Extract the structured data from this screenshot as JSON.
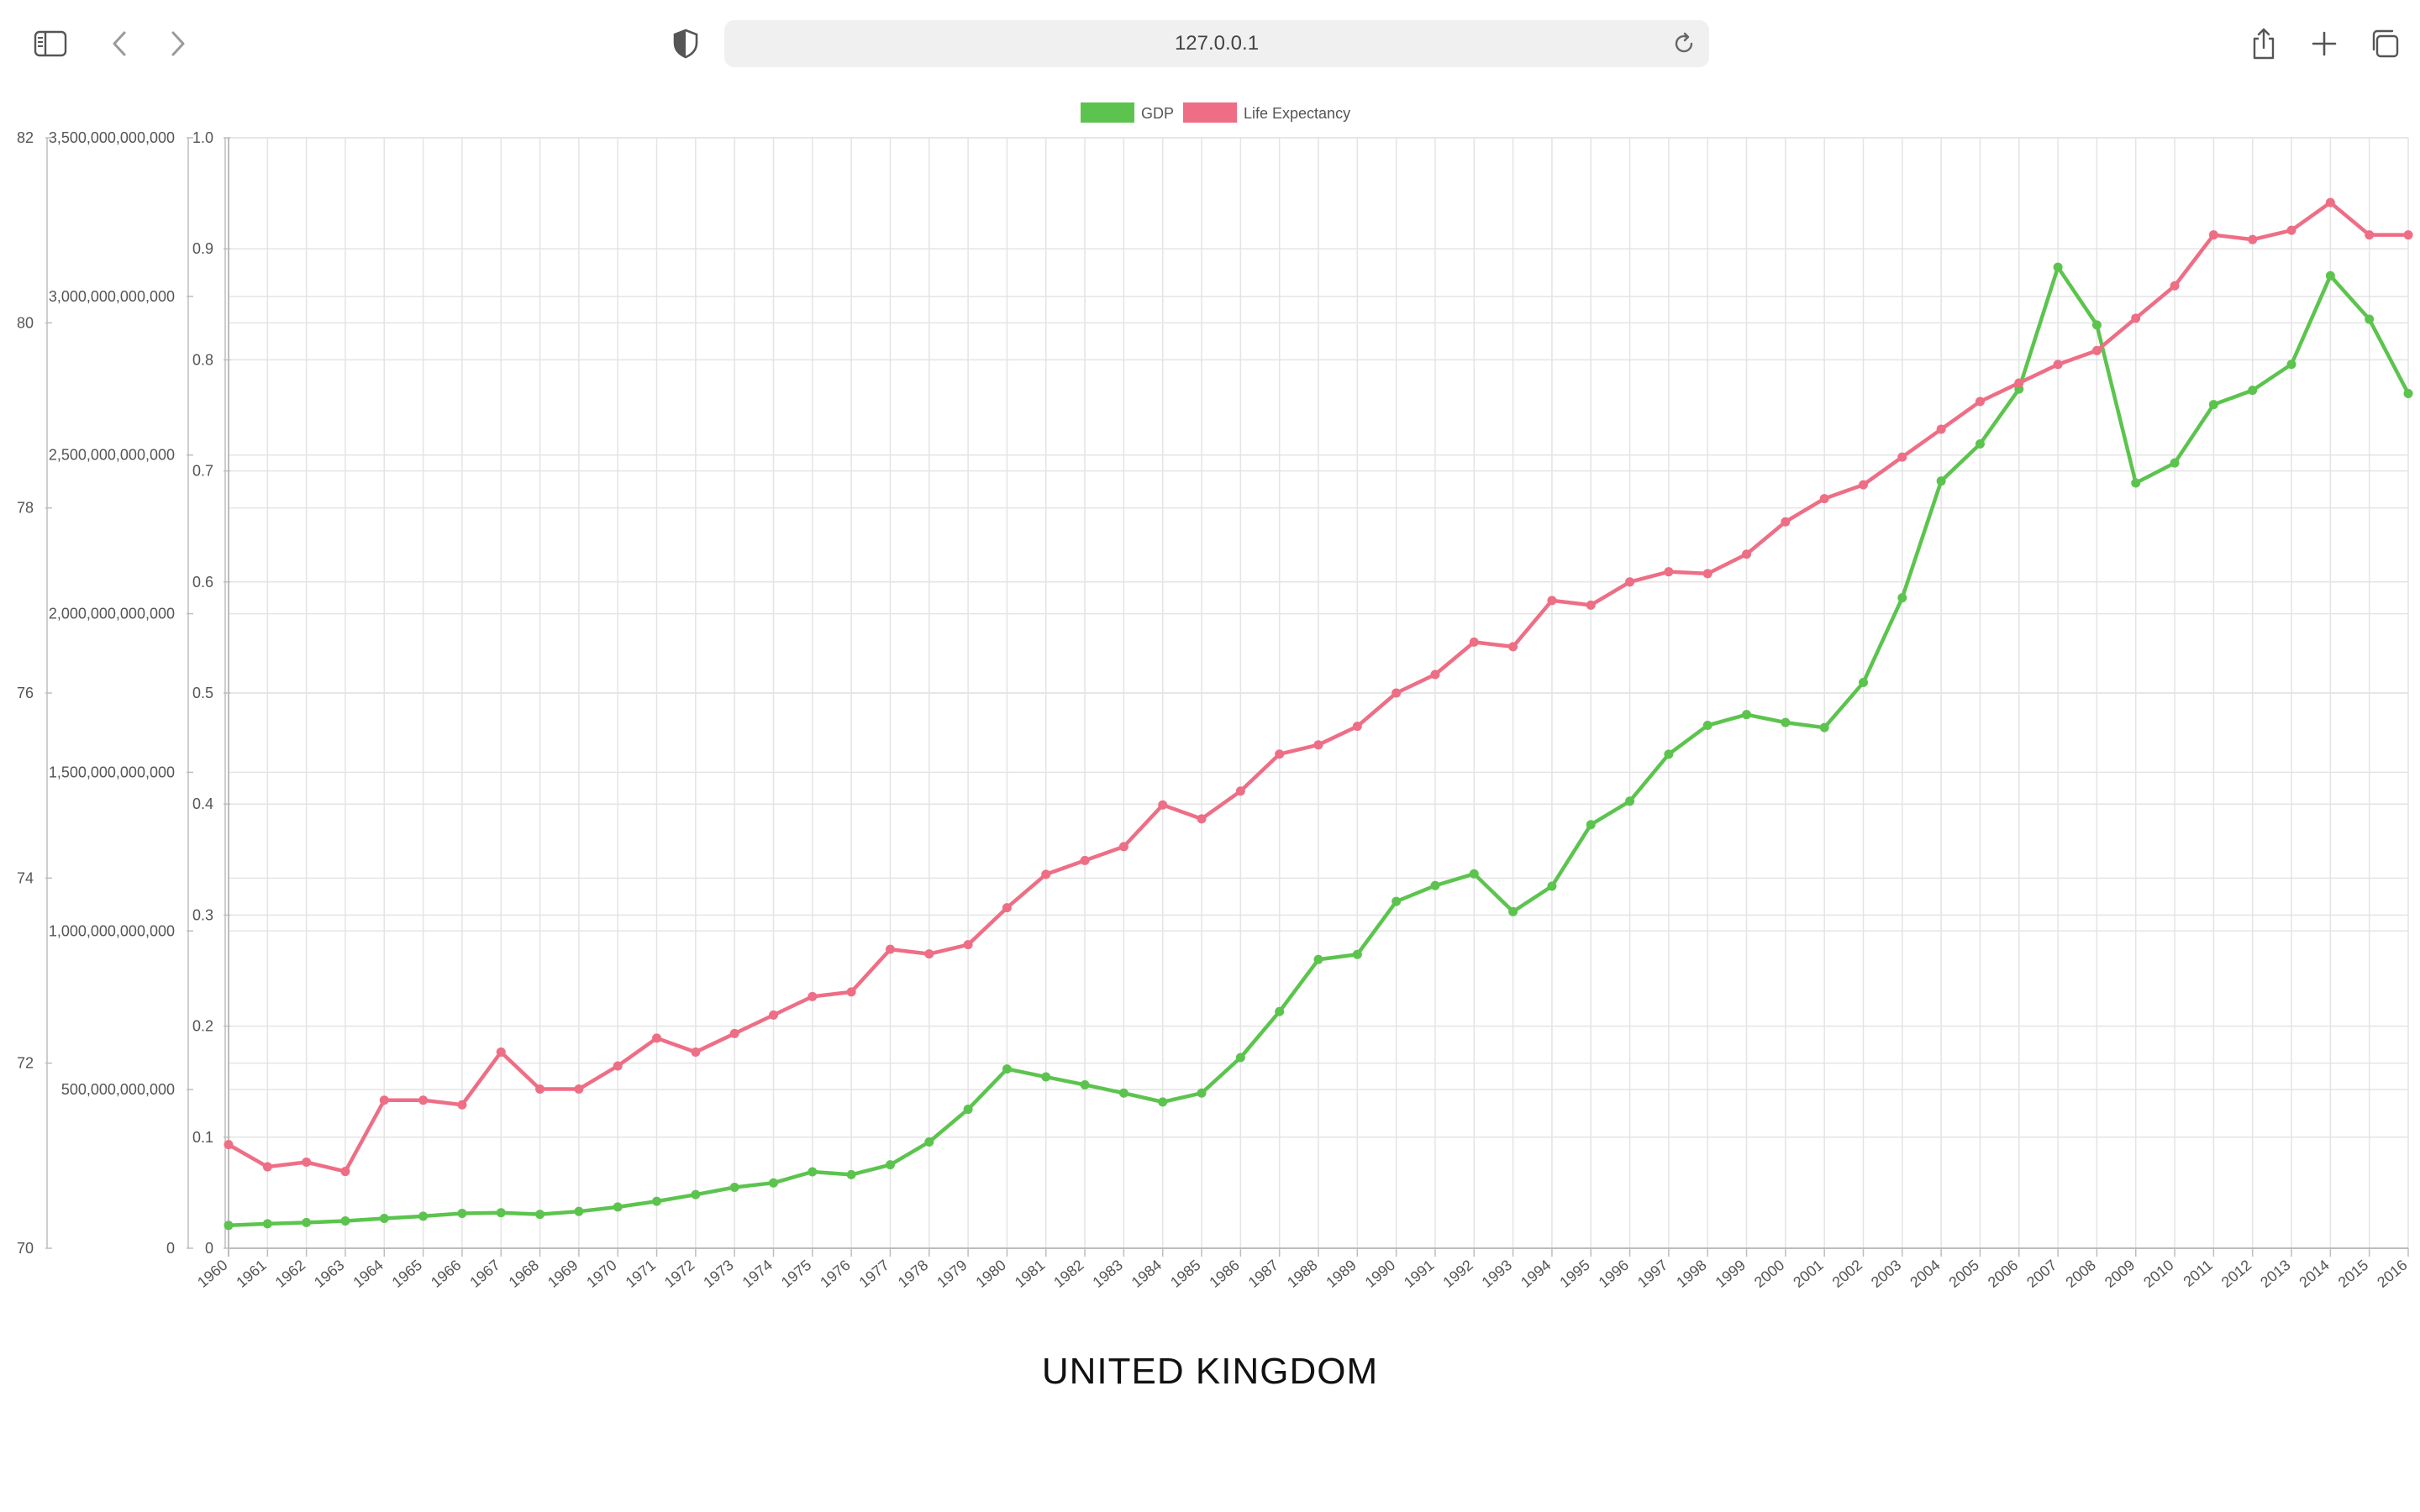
{
  "browser": {
    "url": "127.0.0.1"
  },
  "colors": {
    "gdp": "#5cc44e",
    "life": "#ee6e85",
    "grid": "#e4e4e4",
    "axis": "#bdbdbd",
    "text": "#555555"
  },
  "chart_data": {
    "type": "line",
    "title": "UNITED KINGDOM",
    "legend_position": "top",
    "grid": true,
    "categories": [
      "1960",
      "1961",
      "1962",
      "1963",
      "1964",
      "1965",
      "1966",
      "1967",
      "1968",
      "1969",
      "1970",
      "1971",
      "1972",
      "1973",
      "1974",
      "1975",
      "1976",
      "1977",
      "1978",
      "1979",
      "1980",
      "1981",
      "1982",
      "1983",
      "1984",
      "1985",
      "1986",
      "1987",
      "1988",
      "1989",
      "1990",
      "1991",
      "1992",
      "1993",
      "1994",
      "1995",
      "1996",
      "1997",
      "1998",
      "1999",
      "2000",
      "2001",
      "2002",
      "2003",
      "2004",
      "2005",
      "2006",
      "2007",
      "2008",
      "2009",
      "2010",
      "2011",
      "2012",
      "2013",
      "2014",
      "2015",
      "2016"
    ],
    "series": [
      {
        "name": "GDP",
        "axis": "gdp",
        "values": [
          72000000000,
          77000000000,
          81000000000,
          86000000000,
          94000000000,
          101000000000,
          110000000000,
          112000000000,
          107000000000,
          116000000000,
          130000000000,
          148000000000,
          169000000000,
          192000000000,
          206000000000,
          241000000000,
          232000000000,
          263000000000,
          335000000000,
          438000000000,
          565000000000,
          540000000000,
          515000000000,
          489000000000,
          461000000000,
          489000000000,
          601000000000,
          746000000000,
          910000000000,
          926000000000,
          1093000000000,
          1143000000000,
          1180000000000,
          1061000000000,
          1141000000000,
          1335000000000,
          1409000000000,
          1557000000000,
          1648000000000,
          1682000000000,
          1657000000000,
          1641000000000,
          1783000000000,
          2050000000000,
          2418000000000,
          2535000000000,
          2708000000000,
          3092000000000,
          2910000000000,
          2412000000000,
          2475000000000,
          2659000000000,
          2704000000000,
          2786000000000,
          3065000000000,
          2928000000000,
          2694000000000
        ]
      },
      {
        "name": "Life Expectancy",
        "axis": "life",
        "values": [
          71.12,
          70.88,
          70.93,
          70.83,
          71.6,
          71.6,
          71.55,
          72.12,
          71.72,
          71.72,
          71.97,
          72.27,
          72.12,
          72.32,
          72.52,
          72.72,
          72.77,
          73.23,
          73.18,
          73.28,
          73.68,
          74.04,
          74.19,
          74.34,
          74.79,
          74.64,
          74.94,
          75.34,
          75.44,
          75.64,
          76.0,
          76.2,
          76.55,
          76.5,
          77.0,
          76.95,
          77.2,
          77.31,
          77.29,
          77.5,
          77.85,
          78.1,
          78.25,
          78.55,
          78.85,
          79.15,
          79.35,
          79.55,
          79.7,
          80.05,
          80.4,
          80.95,
          80.9,
          81.0,
          81.3,
          80.95,
          80.95
        ]
      }
    ],
    "axes": {
      "gdp": {
        "min": 0,
        "max": 3500000000000,
        "ticks": [
          "0",
          "500,000,000,000",
          "1,000,000,000,000",
          "1,500,000,000,000",
          "2,000,000,000,000",
          "2,500,000,000,000",
          "3,000,000,000,000",
          "3,500,000,000,000"
        ]
      },
      "life": {
        "min": 70,
        "max": 82,
        "ticks": [
          "70",
          "72",
          "74",
          "76",
          "78",
          "80",
          "82"
        ]
      },
      "unit": {
        "min": 0,
        "max": 1,
        "ticks": [
          "0",
          "0.1",
          "0.2",
          "0.3",
          "0.4",
          "0.5",
          "0.6",
          "0.7",
          "0.8",
          "0.9",
          "1.0"
        ]
      }
    }
  }
}
